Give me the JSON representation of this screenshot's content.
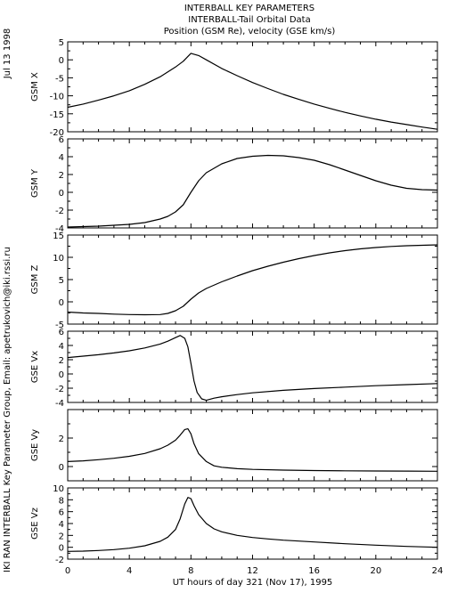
{
  "header": {
    "line1": "INTERBALL KEY PARAMETERS",
    "line2": "INTERBALL-Tail Orbital Data",
    "line3": "Position (GSM Re), velocity (GSE km/s)"
  },
  "side_text": {
    "date": "Jul 13 1998",
    "credit": "IKI RAN INTERBALL Key Parameter Group, Email: apetrukovich@iki.rssi.ru"
  },
  "chart_data": {
    "type": "line",
    "xlabel": "UT hours of day 321 (Nov 17), 1995",
    "xlim": [
      0,
      24
    ],
    "xticks": [
      0,
      4,
      8,
      12,
      16,
      20,
      24
    ],
    "panels": [
      {
        "ylabel": "GSM X",
        "ylim": [
          -20,
          5
        ],
        "yticks": [
          -20,
          -15,
          -10,
          -5,
          0,
          5
        ],
        "x": [
          0,
          1,
          2,
          3,
          4,
          5,
          6,
          7,
          7.5,
          8,
          8.5,
          9,
          10,
          11,
          12,
          13,
          14,
          15,
          16,
          17,
          18,
          19,
          20,
          21,
          22,
          23,
          24
        ],
        "y": [
          -13.2,
          -12.3,
          -11.2,
          -10,
          -8.6,
          -6.8,
          -4.7,
          -2,
          -0.4,
          1.8,
          1.2,
          0,
          -2.4,
          -4.4,
          -6.3,
          -8,
          -9.6,
          -11,
          -12.3,
          -13.5,
          -14.6,
          -15.6,
          -16.5,
          -17.3,
          -18,
          -18.7,
          -19.3
        ]
      },
      {
        "ylabel": "GSM Y",
        "ylim": [
          -4,
          6
        ],
        "yticks": [
          -4,
          -2,
          0,
          2,
          4,
          6
        ],
        "x": [
          0,
          1,
          2,
          3,
          4,
          5,
          6,
          6.5,
          7,
          7.5,
          8,
          8.5,
          9,
          10,
          11,
          12,
          13,
          14,
          15,
          16,
          17,
          18,
          19,
          20,
          21,
          22,
          23,
          24
        ],
        "y": [
          -3.9,
          -3.85,
          -3.8,
          -3.7,
          -3.6,
          -3.4,
          -3,
          -2.7,
          -2.2,
          -1.4,
          0,
          1.3,
          2.2,
          3.2,
          3.8,
          4.05,
          4.15,
          4.1,
          3.9,
          3.6,
          3.1,
          2.5,
          1.9,
          1.3,
          0.8,
          0.45,
          0.3,
          0.25
        ]
      },
      {
        "ylabel": "GSM Z",
        "ylim": [
          -5,
          15
        ],
        "yticks": [
          -5,
          0,
          5,
          10,
          15
        ],
        "x": [
          0,
          1,
          2,
          3,
          4,
          5,
          6,
          6.5,
          7,
          7.5,
          8,
          8.5,
          9,
          10,
          11,
          12,
          13,
          14,
          15,
          16,
          17,
          18,
          19,
          20,
          21,
          22,
          23,
          24
        ],
        "y": [
          -2.3,
          -2.5,
          -2.6,
          -2.75,
          -2.85,
          -2.9,
          -2.85,
          -2.6,
          -2,
          -1,
          0.6,
          2,
          3,
          4.5,
          5.8,
          7,
          8,
          8.9,
          9.7,
          10.4,
          11,
          11.5,
          11.9,
          12.2,
          12.45,
          12.6,
          12.7,
          12.8
        ]
      },
      {
        "ylabel": "GSE Vx",
        "ylim": [
          -4,
          6
        ],
        "yticks": [
          -4,
          -2,
          0,
          2,
          4,
          6
        ],
        "x": [
          0,
          1,
          2,
          3,
          4,
          5,
          6,
          6.5,
          7,
          7.3,
          7.6,
          7.8,
          8,
          8.2,
          8.4,
          8.7,
          9,
          9.5,
          10,
          11,
          12,
          14,
          16,
          18,
          20,
          22,
          24
        ],
        "y": [
          2.3,
          2.5,
          2.7,
          2.95,
          3.25,
          3.65,
          4.2,
          4.6,
          5.1,
          5.4,
          5,
          3.8,
          1.5,
          -1,
          -2.6,
          -3.5,
          -3.7,
          -3.4,
          -3.2,
          -2.9,
          -2.65,
          -2.3,
          -2.05,
          -1.85,
          -1.65,
          -1.5,
          -1.35
        ]
      },
      {
        "ylabel": "GSE Vy",
        "ylim": [
          -1,
          4
        ],
        "yticks": [
          0,
          2
        ],
        "x": [
          0,
          1,
          2,
          3,
          4,
          5,
          6,
          6.5,
          7,
          7.3,
          7.6,
          7.8,
          8,
          8.2,
          8.5,
          9,
          9.5,
          10,
          11,
          12,
          14,
          16,
          18,
          20,
          22,
          24
        ],
        "y": [
          0.35,
          0.4,
          0.48,
          0.58,
          0.72,
          0.92,
          1.25,
          1.5,
          1.85,
          2.2,
          2.6,
          2.65,
          2.3,
          1.6,
          0.9,
          0.35,
          0.05,
          -0.05,
          -0.15,
          -0.2,
          -0.25,
          -0.28,
          -0.3,
          -0.31,
          -0.32,
          -0.33
        ]
      },
      {
        "ylabel": "GSE Vz",
        "ylim": [
          -2,
          10
        ],
        "yticks": [
          -2,
          0,
          2,
          4,
          6,
          8,
          10
        ],
        "x": [
          0,
          1,
          2,
          3,
          4,
          5,
          6,
          6.5,
          7,
          7.3,
          7.6,
          7.8,
          8,
          8.2,
          8.5,
          9,
          9.5,
          10,
          11,
          12,
          13,
          14,
          16,
          18,
          20,
          22,
          24
        ],
        "y": [
          -0.7,
          -0.65,
          -0.55,
          -0.4,
          -0.15,
          0.25,
          1,
          1.7,
          3,
          4.8,
          7.3,
          8.4,
          8.2,
          7,
          5.5,
          4,
          3.1,
          2.6,
          2,
          1.65,
          1.4,
          1.2,
          0.9,
          0.6,
          0.35,
          0.15,
          0
        ]
      }
    ]
  }
}
